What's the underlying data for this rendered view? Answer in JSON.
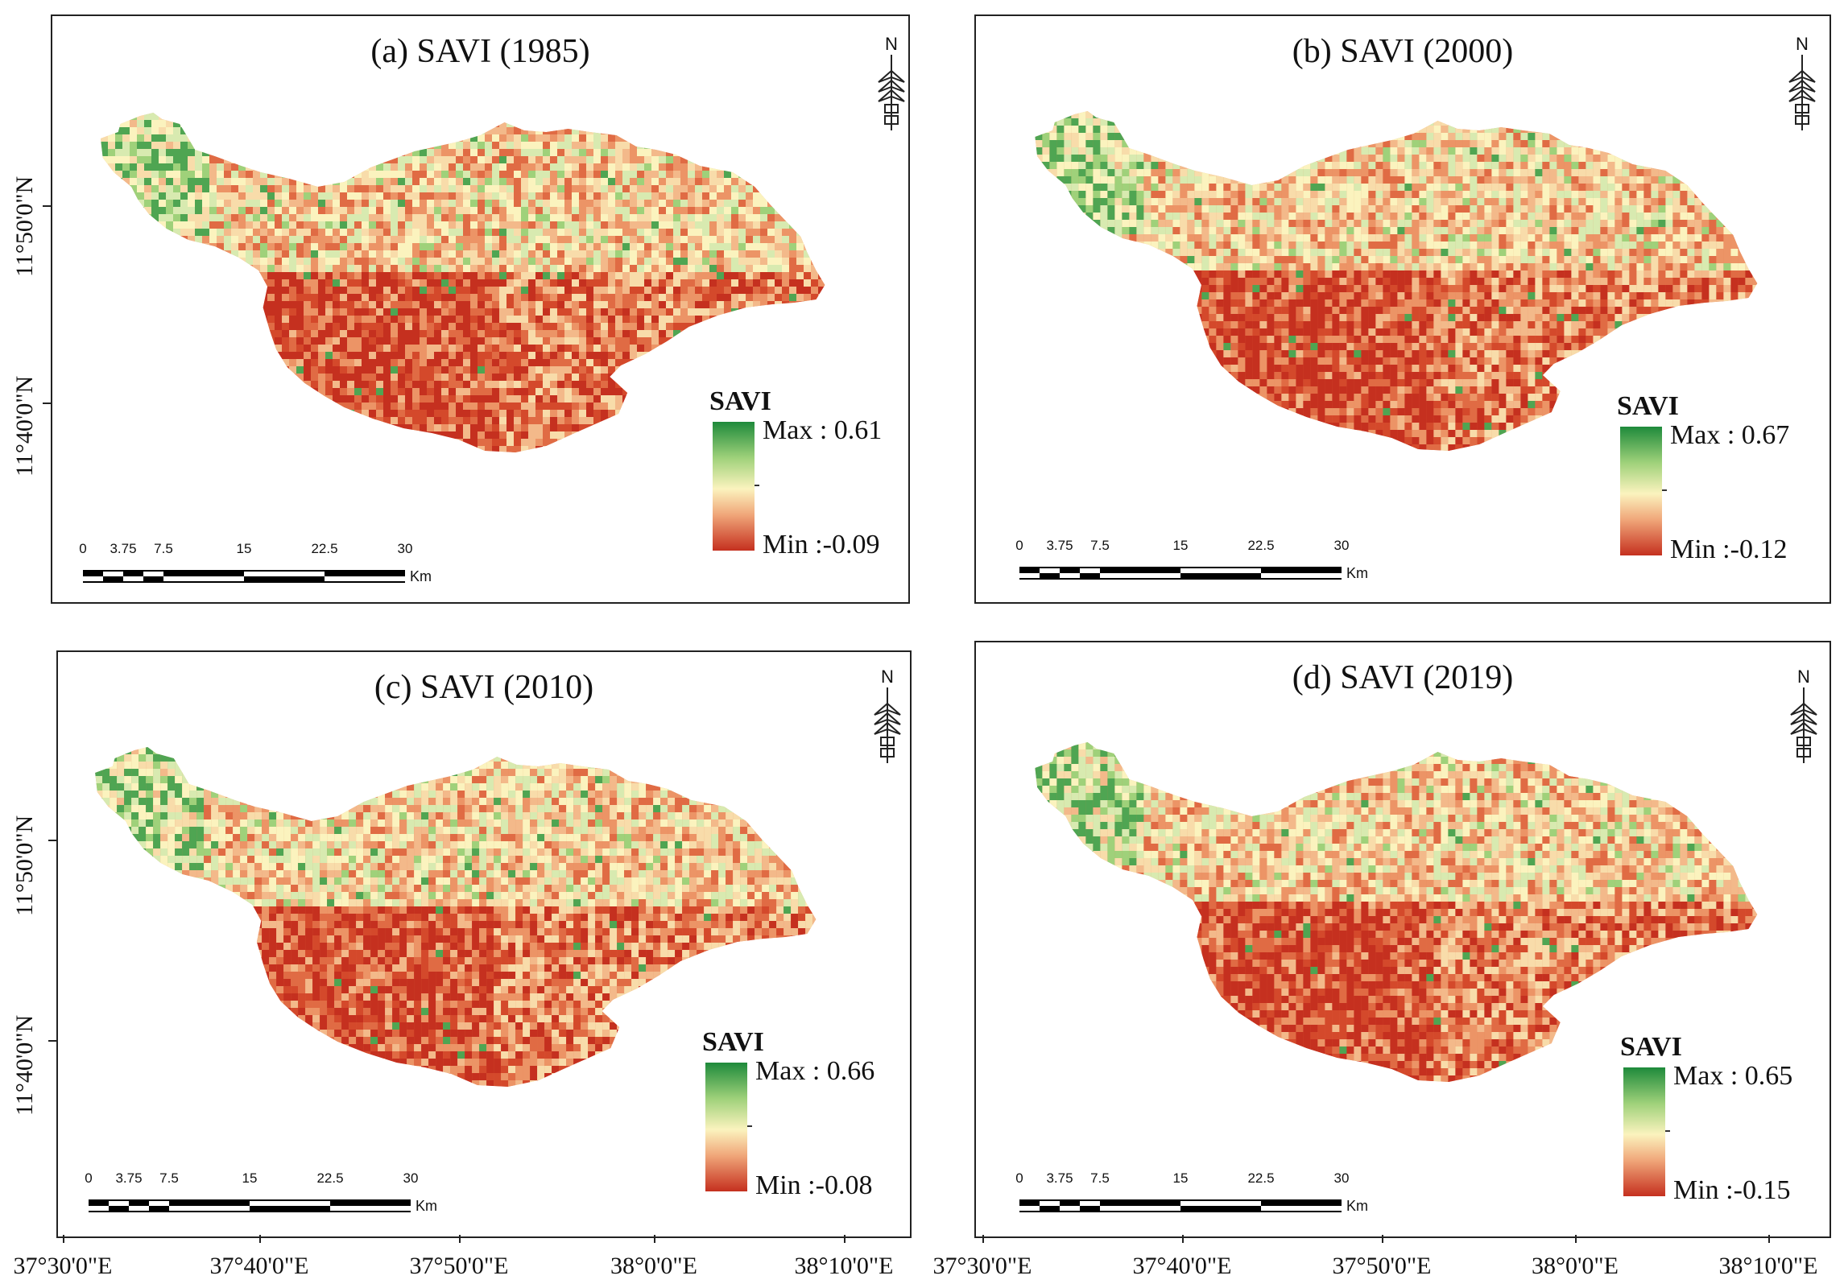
{
  "panels": [
    {
      "title": "(a) SAVI (1985)",
      "legend_title": "SAVI",
      "max_label": "Max : 0.61",
      "min_label": "Min :-0.09"
    },
    {
      "title": "(b) SAVI (2000)",
      "legend_title": "SAVI",
      "max_label": "Max : 0.67",
      "min_label": "Min :-0.12"
    },
    {
      "title": "(c) SAVI (2010)",
      "legend_title": "SAVI",
      "max_label": "Max : 0.66",
      "min_label": "Min :-0.08"
    },
    {
      "title": "(d) SAVI (2019)",
      "legend_title": "SAVI",
      "max_label": "Max : 0.65",
      "min_label": "Min :-0.15"
    }
  ],
  "north_label": "N",
  "scalebar": {
    "labels": [
      "0",
      "3.75",
      "7.5",
      "15",
      "22.5",
      "30"
    ],
    "unit": "Km"
  },
  "lat_labels": [
    "11°50'0\"N",
    "11°40'0\"N"
  ],
  "lon_labels": [
    "37°30'0\"E",
    "37°40'0\"E",
    "37°50'0\"E",
    "38°0'0\"E",
    "38°10'0\"E"
  ],
  "colors": {
    "ramp_max": "#1e8a3b",
    "ramp_mid_high": "#9fd17a",
    "ramp_mid": "#fbf3be",
    "ramp_mid_low": "#f0a77a",
    "ramp_min": "#c5301f"
  }
}
